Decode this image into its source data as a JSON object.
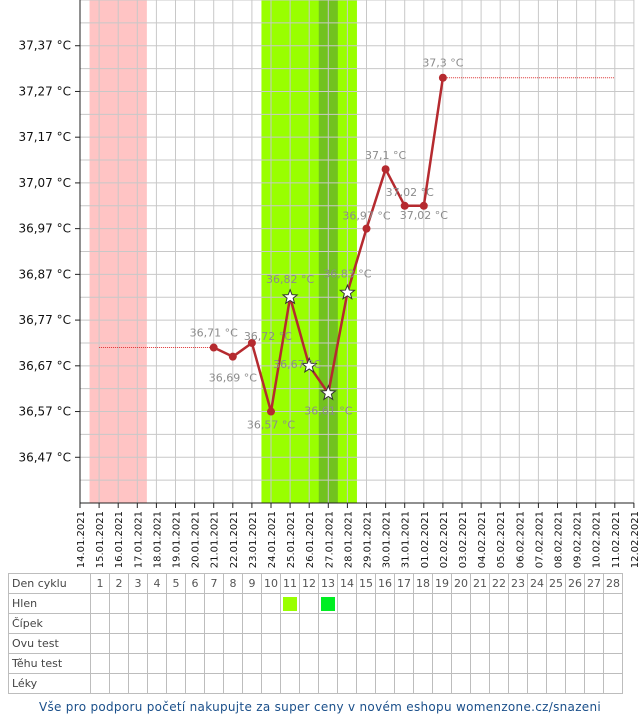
{
  "chart_data": {
    "type": "line",
    "y_unit": "°C",
    "ylim": [
      36.37,
      37.47
    ],
    "y_ticks": [
      "36,47 °C",
      "36,57 °C",
      "36,67 °C",
      "36,77 °C",
      "36,87 °C",
      "36,97 °C",
      "37,07 °C",
      "37,17 °C",
      "37,27 °C",
      "37,37 °C"
    ],
    "y_tick_values": [
      36.47,
      36.57,
      36.67,
      36.77,
      36.87,
      36.97,
      37.07,
      37.17,
      37.27,
      37.37
    ],
    "x_dates": [
      "14.01.2021",
      "15.01.2021",
      "16.01.2021",
      "17.01.2021",
      "18.01.2021",
      "19.01.2021",
      "20.01.2021",
      "21.01.2021",
      "22.01.2021",
      "23.01.2021",
      "24.01.2021",
      "25.01.2021",
      "26.01.2021",
      "27.01.2021",
      "28.01.2021",
      "29.01.2021",
      "30.01.2021",
      "31.01.2021",
      "01.02.2021",
      "02.02.2021",
      "03.02.2021",
      "04.02.2021",
      "05.02.2021",
      "06.02.2021",
      "07.02.2021",
      "08.02.2021",
      "09.02.2021",
      "10.02.2021",
      "11.02.2021",
      "12.02.2021"
    ],
    "grid": true,
    "baseline_level": 36.71,
    "coverline_level": 37.3,
    "shaded_bands": [
      {
        "kind": "period",
        "start": "15.01.2021",
        "end": "17.01.2021",
        "color": "#ffc4c4"
      },
      {
        "kind": "fertile",
        "start": "24.01.2021",
        "end": "28.01.2021",
        "color": "#99ff00"
      },
      {
        "kind": "ovulation",
        "start": "27.01.2021",
        "end": "27.01.2021",
        "color": "#72c21f"
      }
    ],
    "series": [
      {
        "color": "#b52a2f",
        "points": [
          {
            "date": "21.01.2021",
            "value": 36.71,
            "label": "36,71 °C",
            "marker": "dot"
          },
          {
            "date": "22.01.2021",
            "value": 36.69,
            "label": "36,69 °C",
            "marker": "dot"
          },
          {
            "date": "23.01.2021",
            "value": 36.72,
            "label": "36,72 °C",
            "marker": "dot"
          },
          {
            "date": "24.01.2021",
            "value": 36.57,
            "label": "36,57 °C",
            "marker": "dot"
          },
          {
            "date": "25.01.2021",
            "value": 36.82,
            "label": "36,82 °C",
            "marker": "star"
          },
          {
            "date": "26.01.2021",
            "value": 36.67,
            "label": "36,67 °C",
            "marker": "star"
          },
          {
            "date": "27.01.2021",
            "value": 36.61,
            "label": "36,61 °C",
            "marker": "star"
          },
          {
            "date": "28.01.2021",
            "value": 36.83,
            "label": "36,83 °C",
            "marker": "star"
          },
          {
            "date": "29.01.2021",
            "value": 36.97,
            "label": "36,97 °C",
            "marker": "dot"
          },
          {
            "date": "30.01.2021",
            "value": 37.1,
            "label": "37,1 °C",
            "marker": "dot"
          },
          {
            "date": "31.01.2021",
            "value": 37.02,
            "label": "37,02 °C",
            "marker": "dot"
          },
          {
            "date": "01.02.2021",
            "value": 37.02,
            "label": "37,02 °C",
            "marker": "dot"
          },
          {
            "date": "02.02.2021",
            "value": 37.3,
            "label": "37,3 °C",
            "marker": "dot"
          }
        ]
      }
    ]
  },
  "table": {
    "row_labels": [
      "Den cyklu",
      "Hlen",
      "Čípek",
      "Ovu test",
      "Těhu test",
      "Léky"
    ],
    "cycle_days": [
      "1",
      "2",
      "3",
      "4",
      "5",
      "6",
      "7",
      "8",
      "9",
      "10",
      "11",
      "12",
      "13",
      "14",
      "15",
      "16",
      "17",
      "18",
      "19",
      "20",
      "21",
      "22",
      "23",
      "24",
      "25",
      "26",
      "27",
      "28"
    ],
    "hlen_marks": [
      {
        "day": "11",
        "color": "#99ff00"
      },
      {
        "day": "13",
        "color": "#00ee22"
      }
    ]
  },
  "footer_text": "Vše pro podporu početí nakupujte za super ceny v novém eshopu womenzone.cz/snazeni"
}
